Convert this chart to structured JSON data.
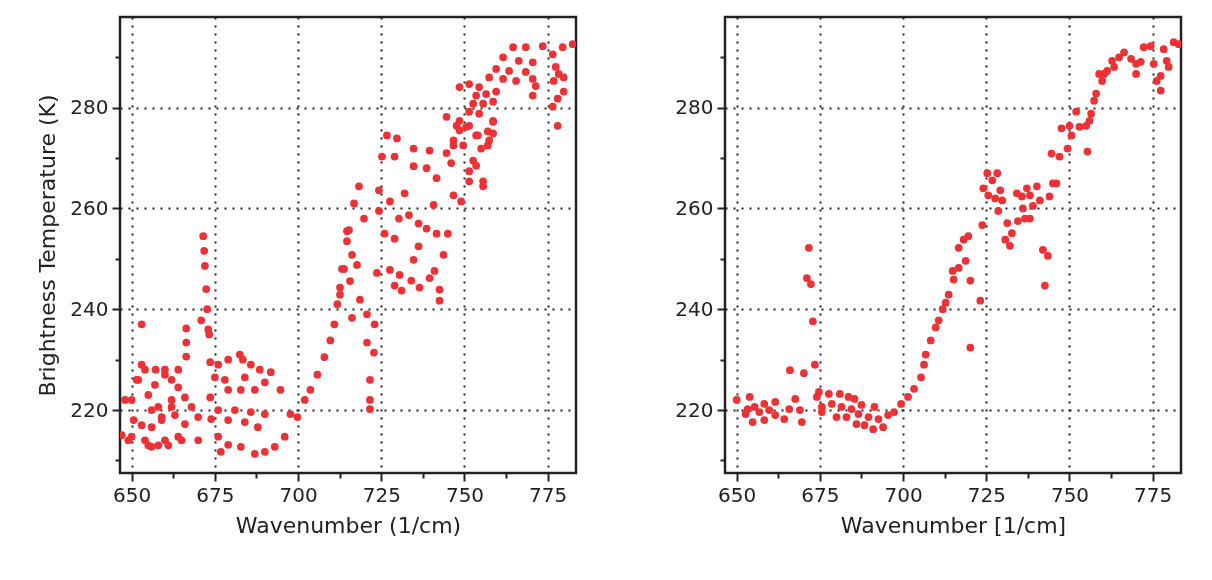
{
  "chart_data": [
    {
      "type": "scatter",
      "xlabel": "Wavenumber (1/cm)",
      "ylabel": "Brightness Temperature (K)",
      "xlim": [
        646.5,
        783.5
      ],
      "ylim": [
        207.5,
        298
      ],
      "xticks": [
        650,
        {
          "value": 662.5,
          "label": null
        },
        675,
        {
          "value": 687.5,
          "label": null
        },
        700,
        {
          "value": 712.5,
          "label": null
        },
        725,
        {
          "value": 737.5,
          "label": null
        },
        750,
        {
          "value": 762.5,
          "label": null
        },
        775
      ],
      "yticks": [
        {
          "value": 210,
          "label": null
        },
        220,
        {
          "value": 230,
          "label": null
        },
        240,
        {
          "value": 250,
          "label": null
        },
        260,
        {
          "value": 270,
          "label": null
        },
        280,
        {
          "value": 290,
          "label": null
        }
      ],
      "grid": true,
      "marker": "circle",
      "series": [
        {
          "color": "#ee3135",
          "x": [
            650,
            650.6,
            651.5,
            653,
            650,
            655,
            657.2,
            660,
            662,
            664,
            666,
            668,
            670,
            662,
            659,
            656,
            654,
            656,
            660,
            664,
            666,
            670,
            658,
            647,
            649,
            648,
            652,
            653,
            655,
            654,
            656,
            658,
            657,
            659,
            660,
            661,
            662,
            663,
            664,
            665,
            653,
            666.4,
            666.4,
            666.4,
            671.5,
            671.8,
            672,
            672.4,
            672.7,
            670.9,
            673,
            673.3,
            673.6,
            676,
            679,
            682.5,
            683.4,
            685.8,
            688.5,
            691.8,
            675,
            678,
            684,
            690,
            673.6,
            679,
            682.8,
            687,
            694.7,
            676,
            681,
            685.8,
            690,
            673.9,
            679,
            684,
            687.9,
            676,
            679,
            682.8,
            687,
            690,
            693,
            676.8,
            696,
            697.7,
            699.8,
            702,
            703.7,
            705.8,
            707.9,
            709.7,
            710.9,
            711.8,
            712.6,
            713.8,
            714.7,
            714.7,
            718.3,
            716.8,
            719.8,
            715.3,
            716.2,
            713.2,
            717.7,
            715.6,
            712.6,
            718.6,
            716.2,
            724.3,
            724.3,
            723.7,
            720.7,
            723,
            720.7,
            722.8,
            721.6,
            721.6,
            721.6,
            726.7,
            729.7,
            725.2,
            729,
            734.7,
            739.5,
            734.7,
            738.6,
            741.6,
            746,
            744.6,
            732,
            740.7,
            727.6,
            730.3,
            733.3,
            736.2,
            738.6,
            741.6,
            745,
            746.7,
            749,
            726,
            729,
            736.2,
            743.7,
            734.7,
            727.6,
            730.5,
            729,
            731.1,
            734,
            736.5,
            739.5,
            741,
            742.5,
            742.5,
            747.6,
            751.4,
            758.6,
            758.6,
            754,
            757,
            755,
            752.6,
            753.5,
            751.4,
            751.4,
            755.6,
            755.6,
            749.6,
            746.7,
            778,
            764.6,
            768.4,
            773.5,
            782.5,
            779.5,
            761.6,
            766.3,
            770.5,
            776.5,
            759.5,
            763.4,
            768.4,
            757.4,
            761.6,
            765.5,
            770.5,
            771.4,
            770.5,
            777.4,
            778.3,
            779.8,
            776.8,
            779.8,
            778,
            776.5,
            748.5,
            751.4,
            754.4,
            753.5,
            756.5,
            759.5,
            752.6,
            755.6,
            758.6,
            751.4,
            754.4,
            744.6,
            748.5,
            758.6,
            750.5,
            748.5,
            746.7,
            753.5,
            757,
            757.4
          ],
          "values": [
            214.7,
            218,
            226,
            229,
            222,
            223,
            228,
            228,
            226,
            224.5,
            222.5,
            220.6,
            218.6,
            220.6,
            218.6,
            216.6,
            214,
            212.7,
            214,
            214.7,
            217.2,
            214,
            220.6,
            215,
            214,
            222,
            226,
            217,
            213,
            228,
            220,
            213,
            225,
            218,
            227,
            213,
            222,
            219,
            228,
            214,
            237,
            236.2,
            233.4,
            230.6,
            254.5,
            251.6,
            248.6,
            244,
            240,
            237.8,
            236,
            235,
            229.5,
            229,
            230,
            231,
            230,
            229,
            228,
            227.5,
            226.5,
            226,
            226.5,
            225.5,
            222.5,
            224,
            224,
            224,
            224,
            220,
            220,
            219.6,
            219.2,
            218.2,
            218,
            217.6,
            216.6,
            214.7,
            213.1,
            212.7,
            211.3,
            211.7,
            212.7,
            211.7,
            214.7,
            219.2,
            218.6,
            222,
            224,
            227,
            230.5,
            233.8,
            237,
            241,
            244.3,
            248,
            253.5,
            255.5,
            264.4,
            261,
            258,
            255.7,
            250.8,
            248,
            248.8,
            245.6,
            242.9,
            241.9,
            238.3,
            263.6,
            259.5,
            247.2,
            239,
            237,
            233.4,
            231.4,
            226,
            222,
            220.2,
            274.5,
            273.9,
            270.3,
            270.3,
            271.9,
            271.5,
            268.4,
            268,
            266,
            269,
            271,
            263,
            260.7,
            261.4,
            258,
            258.7,
            257,
            256,
            255,
            255,
            262.6,
            261.4,
            255,
            254,
            252.5,
            250.8,
            249.8,
            247.8,
            246.8,
            244.7,
            243.7,
            245.7,
            244.3,
            246.2,
            247.6,
            243.9,
            241.7,
            276.4,
            276.4,
            277.2,
            274.9,
            274.5,
            272.5,
            271.9,
            269.5,
            268.5,
            267.4,
            265.4,
            265.4,
            264.4,
            272.5,
            272.5,
            276.4,
            292,
            292,
            292.2,
            292.6,
            292,
            290,
            289.3,
            289,
            290.6,
            287.7,
            287.3,
            287.1,
            286,
            285.7,
            285.3,
            285.7,
            284.3,
            282.4,
            288.1,
            286.7,
            286,
            285.3,
            283.2,
            281.8,
            280.2,
            284.1,
            284.7,
            284.1,
            282.4,
            282.7,
            283.2,
            280.8,
            280.8,
            281.2,
            279.2,
            278.8,
            278.2,
            277.4,
            277.4,
            276.2,
            275.5,
            273.5,
            274.5,
            275.3,
            273.5
          ]
        }
      ]
    },
    {
      "type": "scatter",
      "xlabel": "Wavenumber [1/cm]",
      "xlim": [
        646.5,
        783.5
      ],
      "ylim": [
        207.5,
        298
      ],
      "xticks": [
        650,
        {
          "value": 662.5,
          "label": null
        },
        675,
        {
          "value": 687.5,
          "label": null
        },
        700,
        {
          "value": 712.5,
          "label": null
        },
        725,
        {
          "value": 737.5,
          "label": null
        },
        750,
        {
          "value": 762.5,
          "label": null
        },
        775
      ],
      "yticks": [
        {
          "value": 210,
          "label": null
        },
        220,
        {
          "value": 230,
          "label": null
        },
        240,
        {
          "value": 250,
          "label": null
        },
        260,
        {
          "value": 270,
          "label": null
        },
        280,
        {
          "value": 290,
          "label": null
        }
      ],
      "grid": true,
      "marker": "circle",
      "series": [
        {
          "color": "#ee3135",
          "x": [
            650,
            653.9,
            655.4,
            654.8,
            658.3,
            658.3,
            661.6,
            661.6,
            664.3,
            665.8,
            659.8,
            656.8,
            653.3,
            652.7,
            667.6,
            669,
            669.6,
            666,
            670.2,
            673.5,
            671.7,
            671.1,
            672.3,
            672.9,
            674.7,
            677.7,
            681,
            683.6,
            685.4,
            674.1,
            675.6,
            678.6,
            681.5,
            684.5,
            687.5,
            675.6,
            680,
            683,
            686.6,
            689.6,
            691.4,
            686,
            688.4,
            691,
            694,
            692.6,
            695.5,
            697.3,
            699.4,
            701.5,
            703.3,
            705.4,
            706.3,
            706.8,
            708.3,
            709.8,
            710.7,
            711.9,
            712.8,
            713.7,
            715.2,
            714.9,
            716.7,
            718.8,
            716.7,
            718.2,
            719.6,
            720.2,
            720.2,
            723.2,
            723.8,
            724.1,
            725.3,
            728.3,
            726.8,
            725.6,
            727.7,
            729.8,
            729.2,
            728.6,
            731.3,
            730.7,
            732.1,
            732.7,
            734.5,
            734.2,
            735.7,
            737.2,
            738.1,
            740.2,
            739,
            736,
            736.6,
            738.1,
            741.1,
            744,
            742,
            743.5,
            742.6,
            745,
            746.1,
            744.6,
            747,
            749.4,
            747.6,
            750,
            752,
            750.6,
            753,
            755,
            755.4,
            756.5,
            756,
            757.4,
            758,
            758.9,
            759.8,
            761.3,
            762.8,
            764.9,
            766.4,
            768.5,
            770,
            771.4,
            770,
            772.3,
            774.4,
            775.3,
            778.3,
            779.2,
            779.8,
            777.4,
            776.2,
            777.4,
            781.3,
            782.8,
            763.4,
            760.4
          ],
          "values": [
            222,
            222.6,
            220.6,
            217.6,
            221.2,
            218,
            221.6,
            219,
            218.2,
            220.2,
            220,
            219.6,
            220.2,
            219.2,
            222.2,
            220,
            217.6,
            227.9,
            227.3,
            229,
            252.2,
            246.2,
            245,
            237.6,
            223.6,
            223.2,
            223.2,
            222.6,
            222.2,
            222.6,
            220.6,
            221.2,
            220.6,
            220.2,
            221,
            219.6,
            218.6,
            218.6,
            219.2,
            218.6,
            220.6,
            217.2,
            217,
            216.2,
            216.6,
            218.2,
            219,
            219.6,
            221.2,
            222.6,
            224.2,
            226.5,
            229,
            231,
            233.8,
            236.4,
            237.8,
            240,
            241.3,
            242.9,
            245.9,
            247.6,
            248.2,
            249.6,
            252.2,
            253.8,
            254.5,
            245.7,
            232.4,
            241.7,
            256.7,
            264,
            267,
            267,
            265.6,
            262.6,
            262,
            261.6,
            263.6,
            259.5,
            257.1,
            253.8,
            252.6,
            255.1,
            257.5,
            263,
            262.4,
            264,
            262.6,
            264.4,
            260.5,
            260,
            258,
            258,
            261.6,
            262.4,
            251.8,
            250.6,
            244.7,
            265,
            265,
            270.9,
            270.3,
            271.9,
            275.9,
            276.4,
            279.2,
            274.5,
            276.2,
            276.4,
            271.3,
            278.8,
            277.4,
            281.4,
            282.8,
            286.7,
            285.3,
            287.3,
            289.3,
            290,
            291,
            289.7,
            288.7,
            289.1,
            286.7,
            292,
            292.2,
            288.7,
            291.6,
            289.3,
            288.1,
            286.3,
            285.3,
            283.4,
            293,
            292.6,
            288.1,
            286.7
          ]
        }
      ]
    }
  ]
}
